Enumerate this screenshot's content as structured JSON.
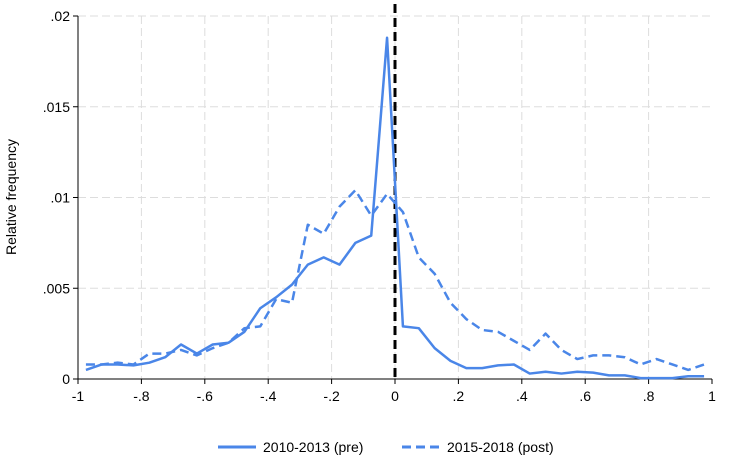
{
  "chart_data": {
    "type": "line",
    "xlabel": "",
    "ylabel": "Relative frequency",
    "xlim": [
      -1,
      1
    ],
    "ylim": [
      0,
      0.02
    ],
    "x_ticks": [
      {
        "value": -1,
        "label": "-1"
      },
      {
        "value": -0.8,
        "label": "-.8"
      },
      {
        "value": -0.6,
        "label": "-.6"
      },
      {
        "value": -0.4,
        "label": "-.4"
      },
      {
        "value": -0.2,
        "label": "-.2"
      },
      {
        "value": 0,
        "label": "0"
      },
      {
        "value": 0.2,
        "label": ".2"
      },
      {
        "value": 0.4,
        "label": ".4"
      },
      {
        "value": 0.6,
        "label": ".6"
      },
      {
        "value": 0.8,
        "label": ".8"
      },
      {
        "value": 1,
        "label": "1"
      }
    ],
    "y_ticks": [
      {
        "value": 0,
        "label": "0"
      },
      {
        "value": 0.005,
        "label": ".005"
      },
      {
        "value": 0.01,
        "label": ".01"
      },
      {
        "value": 0.015,
        "label": ".015"
      },
      {
        "value": 0.02,
        "label": ".02"
      }
    ],
    "grid": true,
    "reference_line": {
      "x": 0,
      "style": "dashed",
      "color": "#000000"
    },
    "legend_position": "bottom",
    "series": [
      {
        "name": "2010-2013 (pre)",
        "style": "solid",
        "color": "#4a86e8",
        "x": [
          -0.975,
          -0.925,
          -0.875,
          -0.825,
          -0.775,
          -0.725,
          -0.675,
          -0.625,
          -0.575,
          -0.525,
          -0.475,
          -0.425,
          -0.375,
          -0.325,
          -0.275,
          -0.225,
          -0.175,
          -0.125,
          -0.075,
          -0.025,
          0.025,
          0.075,
          0.125,
          0.175,
          0.225,
          0.275,
          0.325,
          0.375,
          0.425,
          0.475,
          0.525,
          0.575,
          0.625,
          0.675,
          0.725,
          0.775,
          0.825,
          0.875,
          0.925,
          0.975
        ],
        "y": [
          0.0005,
          0.0008,
          0.0008,
          0.00075,
          0.0009,
          0.0012,
          0.0019,
          0.0014,
          0.0019,
          0.002,
          0.0026,
          0.0039,
          0.0045,
          0.0052,
          0.0063,
          0.0067,
          0.0063,
          0.0075,
          0.0079,
          0.0188,
          0.0029,
          0.0028,
          0.0017,
          0.001,
          0.0006,
          0.0006,
          0.00075,
          0.0008,
          0.0003,
          0.0004,
          0.0003,
          0.0004,
          0.00035,
          0.0002,
          0.0002,
          5e-05,
          5e-05,
          5e-05,
          0.00015,
          0.00015
        ]
      },
      {
        "name": "2015-2018 (post)",
        "style": "dashed",
        "color": "#4a86e8",
        "x": [
          -0.975,
          -0.925,
          -0.875,
          -0.825,
          -0.775,
          -0.725,
          -0.675,
          -0.625,
          -0.575,
          -0.525,
          -0.475,
          -0.425,
          -0.375,
          -0.325,
          -0.275,
          -0.225,
          -0.175,
          -0.125,
          -0.075,
          -0.025,
          0.025,
          0.075,
          0.125,
          0.175,
          0.225,
          0.275,
          0.325,
          0.375,
          0.425,
          0.475,
          0.525,
          0.575,
          0.625,
          0.675,
          0.725,
          0.775,
          0.825,
          0.875,
          0.925,
          0.975
        ],
        "y": [
          0.0008,
          0.0008,
          0.0009,
          0.0008,
          0.0014,
          0.0014,
          0.0016,
          0.0013,
          0.0017,
          0.002,
          0.0028,
          0.0029,
          0.0044,
          0.0042,
          0.0085,
          0.008,
          0.0095,
          0.0104,
          0.009,
          0.0102,
          0.0092,
          0.0067,
          0.0058,
          0.0042,
          0.0033,
          0.0027,
          0.0026,
          0.0021,
          0.0016,
          0.0025,
          0.0016,
          0.0011,
          0.0013,
          0.0013,
          0.0012,
          0.0008,
          0.0011,
          0.0008,
          0.0005,
          0.0008
        ]
      }
    ]
  }
}
